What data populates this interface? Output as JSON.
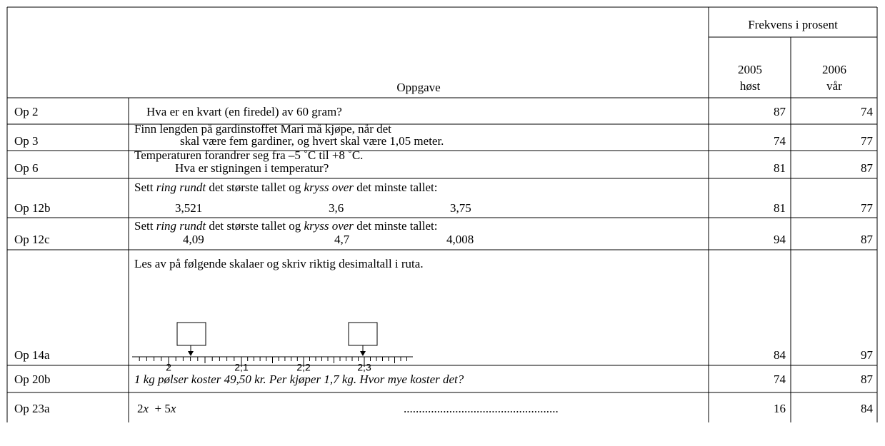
{
  "header": {
    "group": "Frekvens i prosent",
    "task": "Oppgave",
    "col1": [
      "2005",
      "høst"
    ],
    "col2": [
      "2006",
      "vår"
    ]
  },
  "rows": [
    {
      "id": "Op 2",
      "task": [
        "Hva er en kvart (en firedel) av 60 gram?"
      ],
      "v2005": 87,
      "v2006": 74
    },
    {
      "id": "Op 3",
      "task": [
        "Finn lengden på gardinstoffet Mari må kjøpe, når det",
        "skal være fem gardiner, og hvert skal være 1,05 meter."
      ],
      "v2005": 74,
      "v2006": 77
    },
    {
      "id": "Op 6",
      "task": [
        "Temperaturen forandrer seg fra –5 ˚C til +8 ˚C.",
        "Hva er stigningen i temperatur?"
      ],
      "v2005": 81,
      "v2006": 87
    },
    {
      "id": "Op 12b",
      "task": [
        "Sett ",
        "ring rundt",
        " det største tallet og ",
        "kryss over",
        " det minste tallet:"
      ],
      "numbers": [
        "3,521",
        "3,6",
        "3,75"
      ],
      "v2005": 81,
      "v2006": 77
    },
    {
      "id": "Op 12c",
      "task": [
        "Sett ",
        "ring rundt",
        " det største tallet og ",
        "kryss over",
        " det minste tallet:"
      ],
      "numbers": [
        "4,09",
        "4,7",
        "4,008"
      ],
      "v2005": 94,
      "v2006": 87
    },
    {
      "id": "Op 14a",
      "task": [
        "Les av på følgende skalaer og skriv riktig desimaltall i ruta."
      ],
      "scale": [
        "2",
        "2,1",
        "2,2",
        "2,3"
      ],
      "v2005": 84,
      "v2006": 97
    },
    {
      "id": "Op 20b",
      "task": [
        "1 kg pølser koster 49,50 kr. Per kjøper 1,7 kg. Hvor mye koster det?"
      ],
      "v2005": 74,
      "v2006": 87
    },
    {
      "id": "Op 23a",
      "task": [
        "2",
        "x",
        "  + 5",
        "x",
        "..................................................."
      ],
      "v2005": 16,
      "v2006": 84
    }
  ]
}
